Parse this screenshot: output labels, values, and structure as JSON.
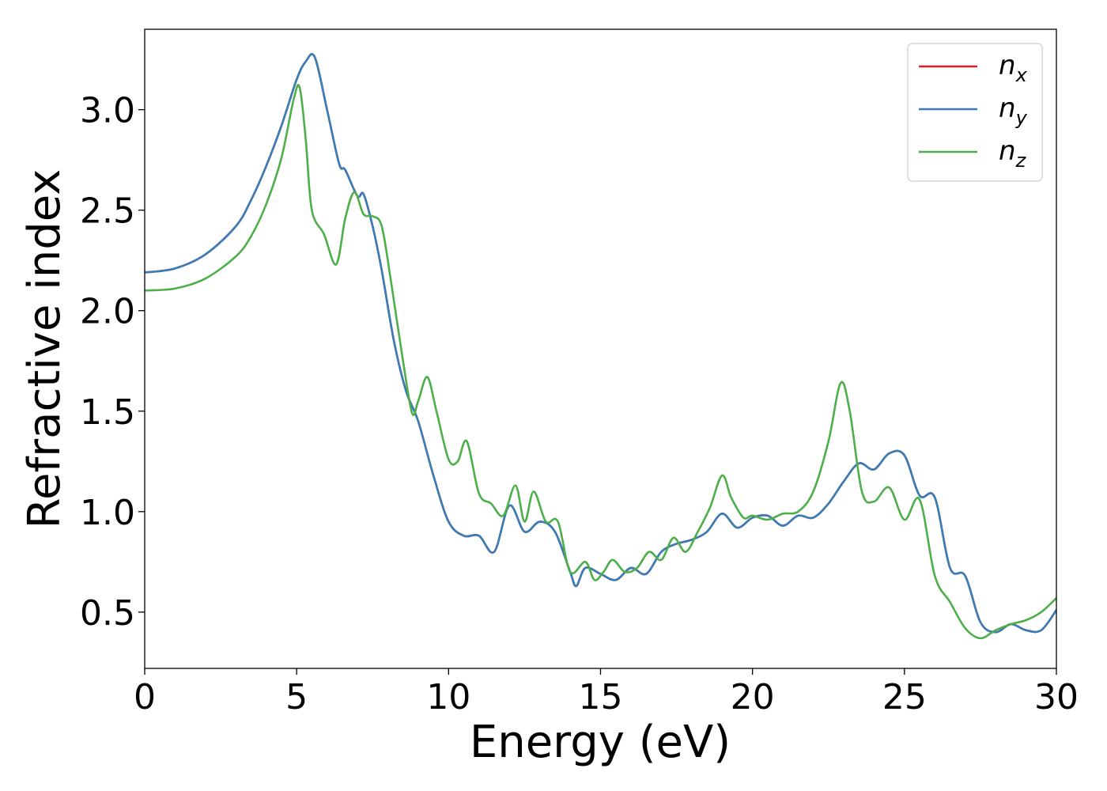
{
  "chart_data": {
    "type": "line",
    "xlabel": "Energy (eV)",
    "ylabel": "Refractive index",
    "xlim": [
      0,
      30
    ],
    "ylim": [
      0.22,
      3.4
    ],
    "xticks": [
      0,
      5,
      10,
      15,
      20,
      25,
      30
    ],
    "xtick_labels": [
      "0",
      "5",
      "10",
      "15",
      "20",
      "25",
      "30"
    ],
    "yticks": [
      0.5,
      1.0,
      1.5,
      2.0,
      2.5,
      3.0
    ],
    "ytick_labels": [
      "0.5",
      "1.0",
      "1.5",
      "2.0",
      "2.5",
      "3.0"
    ],
    "grid": false,
    "legend_position": "top-right",
    "series": [
      {
        "name": "n_x",
        "legend_base": "n",
        "legend_sub": "x",
        "color": "#e41a1c",
        "x": [
          0,
          1,
          2,
          3,
          3.5,
          4,
          4.5,
          5,
          5.3,
          5.6,
          6,
          6.4,
          6.6,
          7,
          7.2,
          7.5,
          7.8,
          8.2,
          8.6,
          9,
          9.5,
          10,
          10.5,
          11,
          11.5,
          12,
          12.5,
          13,
          13.5,
          14,
          14.2,
          14.5,
          15,
          15.5,
          16,
          16.5,
          17,
          17.5,
          18,
          18.5,
          19,
          19.5,
          20,
          20.5,
          21,
          21.5,
          22,
          22.5,
          23,
          23.5,
          24,
          24.5,
          25,
          25.5,
          26,
          26.5,
          27,
          27.5,
          28,
          28.5,
          29,
          29.5,
          30
        ],
        "y": [
          2.19,
          2.21,
          2.28,
          2.42,
          2.55,
          2.72,
          2.92,
          3.15,
          3.24,
          3.26,
          3.0,
          2.73,
          2.7,
          2.57,
          2.58,
          2.42,
          2.2,
          1.85,
          1.6,
          1.45,
          1.18,
          0.95,
          0.88,
          0.88,
          0.8,
          1.03,
          0.9,
          0.95,
          0.9,
          0.7,
          0.63,
          0.72,
          0.69,
          0.66,
          0.72,
          0.69,
          0.8,
          0.84,
          0.86,
          0.9,
          0.99,
          0.92,
          0.97,
          0.98,
          0.93,
          0.98,
          0.97,
          1.04,
          1.15,
          1.24,
          1.21,
          1.29,
          1.28,
          1.08,
          1.07,
          0.72,
          0.68,
          0.45,
          0.4,
          0.44,
          0.41,
          0.41,
          0.51
        ]
      },
      {
        "name": "n_y",
        "legend_base": "n",
        "legend_sub": "y",
        "color": "#377eb8",
        "x": [
          0,
          1,
          2,
          3,
          3.5,
          4,
          4.5,
          5,
          5.3,
          5.6,
          6,
          6.4,
          6.6,
          7,
          7.2,
          7.5,
          7.8,
          8.2,
          8.6,
          9,
          9.5,
          10,
          10.5,
          11,
          11.5,
          12,
          12.5,
          13,
          13.5,
          14,
          14.2,
          14.5,
          15,
          15.5,
          16,
          16.5,
          17,
          17.5,
          18,
          18.5,
          19,
          19.5,
          20,
          20.5,
          21,
          21.5,
          22,
          22.5,
          23,
          23.5,
          24,
          24.5,
          25,
          25.5,
          26,
          26.5,
          27,
          27.5,
          28,
          28.5,
          29,
          29.5,
          30
        ],
        "y": [
          2.19,
          2.21,
          2.28,
          2.42,
          2.55,
          2.72,
          2.92,
          3.15,
          3.24,
          3.26,
          3.0,
          2.73,
          2.7,
          2.57,
          2.58,
          2.42,
          2.2,
          1.85,
          1.6,
          1.45,
          1.18,
          0.95,
          0.88,
          0.88,
          0.8,
          1.03,
          0.9,
          0.95,
          0.9,
          0.7,
          0.63,
          0.72,
          0.69,
          0.66,
          0.72,
          0.69,
          0.8,
          0.84,
          0.86,
          0.9,
          0.99,
          0.92,
          0.97,
          0.98,
          0.93,
          0.98,
          0.97,
          1.04,
          1.15,
          1.24,
          1.21,
          1.29,
          1.28,
          1.08,
          1.07,
          0.72,
          0.68,
          0.45,
          0.4,
          0.44,
          0.41,
          0.41,
          0.51
        ]
      },
      {
        "name": "n_z",
        "legend_base": "n",
        "legend_sub": "z",
        "color": "#4daf4a",
        "x": [
          0,
          1,
          2,
          3,
          3.5,
          4,
          4.5,
          4.9,
          5.1,
          5.3,
          5.5,
          5.9,
          6.3,
          6.6,
          6.9,
          7.2,
          7.5,
          7.8,
          8.1,
          8.5,
          8.8,
          9.0,
          9.3,
          9.6,
          10,
          10.3,
          10.6,
          11,
          11.4,
          11.8,
          12.2,
          12.5,
          12.8,
          13.2,
          13.6,
          14,
          14.5,
          14.8,
          15.1,
          15.4,
          15.8,
          16.2,
          16.6,
          17,
          17.4,
          17.8,
          18.2,
          18.6,
          19,
          19.3,
          19.7,
          20,
          20.5,
          21,
          21.5,
          22,
          22.5,
          22.9,
          23.2,
          23.6,
          24,
          24.5,
          25,
          25.5,
          26,
          26.5,
          27,
          27.5,
          28,
          28.5,
          29,
          29.5,
          30
        ],
        "y": [
          2.1,
          2.11,
          2.16,
          2.27,
          2.37,
          2.53,
          2.76,
          3.05,
          3.11,
          2.85,
          2.5,
          2.38,
          2.23,
          2.46,
          2.59,
          2.48,
          2.47,
          2.42,
          2.15,
          1.75,
          1.49,
          1.55,
          1.67,
          1.5,
          1.26,
          1.25,
          1.35,
          1.09,
          1.04,
          0.98,
          1.13,
          0.95,
          1.1,
          0.95,
          0.95,
          0.7,
          0.75,
          0.66,
          0.7,
          0.76,
          0.7,
          0.72,
          0.8,
          0.76,
          0.87,
          0.8,
          0.9,
          1.02,
          1.18,
          1.07,
          0.97,
          0.98,
          0.96,
          0.99,
          1.0,
          1.1,
          1.35,
          1.64,
          1.5,
          1.1,
          1.05,
          1.12,
          0.96,
          1.06,
          0.68,
          0.55,
          0.42,
          0.37,
          0.41,
          0.44,
          0.46,
          0.5,
          0.57
        ]
      }
    ]
  }
}
